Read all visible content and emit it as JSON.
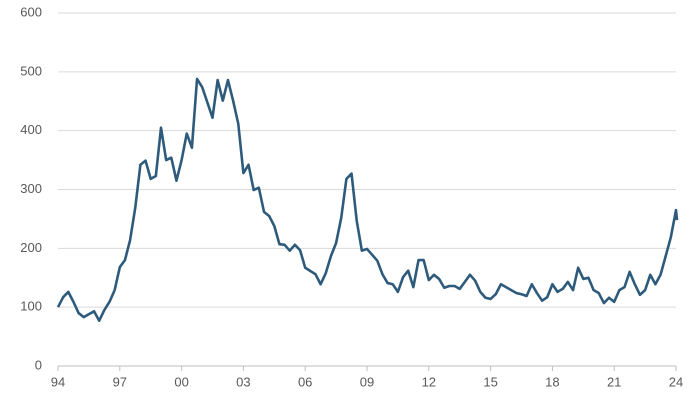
{
  "chart_data": {
    "type": "line",
    "color": "#2e5b7b",
    "grid": true,
    "x": [
      1994,
      1994.25,
      1994.5,
      1994.75,
      1995,
      1995.25,
      1995.75,
      1996,
      1996.25,
      1996.5,
      1996.75,
      1997,
      1997.25,
      1997.5,
      1997.75,
      1998,
      1998.25,
      1998.5,
      1998.75,
      1999,
      1999.25,
      1999.5,
      1999.75,
      2000,
      2000.25,
      2000.5,
      2000.75,
      2001,
      2001.5,
      2001.75,
      2002,
      2002.25,
      2002.5,
      2002.75,
      2003,
      2003.25,
      2003.5,
      2003.75,
      2004,
      2004.25,
      2004.5,
      2004.75,
      2005,
      2005.25,
      2005.5,
      2005.75,
      2006,
      2006.5,
      2006.75,
      2007,
      2007.25,
      2007.5,
      2007.75,
      2008,
      2008.25,
      2008.5,
      2008.75,
      2009,
      2009.5,
      2009.75,
      2010,
      2010.25,
      2010.5,
      2010.75,
      2011,
      2011.25,
      2011.5,
      2011.75,
      2012,
      2012.25,
      2012.5,
      2012.75,
      2013,
      2013.25,
      2013.5,
      2013.75,
      2014,
      2014.25,
      2014.5,
      2014.75,
      2015,
      2015.25,
      2015.5,
      2015.75,
      2016,
      2016.25,
      2016.5,
      2016.75,
      2017,
      2017.25,
      2017.5,
      2017.75,
      2018,
      2018.25,
      2018.5,
      2018.75,
      2019,
      2019.25,
      2019.5,
      2019.75,
      2020,
      2020.25,
      2020.5,
      2020.75,
      2021,
      2021.25,
      2021.5,
      2021.75,
      2022,
      2022.25,
      2022.5,
      2022.75,
      2023,
      2023.25,
      2023.5,
      2023.75,
      2024,
      2024.05
    ],
    "values": [
      100,
      117,
      126,
      109,
      90,
      83,
      93,
      77,
      95,
      109,
      129,
      168,
      180,
      214,
      269,
      342,
      349,
      318,
      323,
      405,
      350,
      354,
      315,
      350,
      395,
      371,
      488,
      474,
      422,
      486,
      451,
      486,
      451,
      412,
      328,
      342,
      299,
      303,
      262,
      255,
      238,
      207,
      206,
      196,
      206,
      197,
      167,
      156,
      139,
      158,
      187,
      209,
      252,
      318,
      327,
      247,
      196,
      199,
      179,
      156,
      141,
      139,
      126,
      151,
      162,
      134,
      180,
      180,
      146,
      155,
      148,
      133,
      136,
      136,
      131,
      143,
      155,
      145,
      126,
      116,
      114,
      122,
      139,
      134,
      129,
      124,
      122,
      119,
      139,
      124,
      111,
      117,
      139,
      126,
      131,
      143,
      129,
      167,
      148,
      150,
      129,
      124,
      107,
      116,
      109,
      129,
      134,
      160,
      139,
      121,
      129,
      155,
      139,
      155,
      187,
      219,
      265,
      248
    ],
    "xlim": [
      1994,
      2024
    ],
    "xticks": [
      {
        "value": 1994,
        "label": "94"
      },
      {
        "value": 1997,
        "label": "97"
      },
      {
        "value": 2000,
        "label": "00"
      },
      {
        "value": 2003,
        "label": "03"
      },
      {
        "value": 2006,
        "label": "06"
      },
      {
        "value": 2009,
        "label": "09"
      },
      {
        "value": 2012,
        "label": "12"
      },
      {
        "value": 2015,
        "label": "15"
      },
      {
        "value": 2018,
        "label": "18"
      },
      {
        "value": 2021,
        "label": "21"
      },
      {
        "value": 2024,
        "label": "24"
      }
    ],
    "ylim": [
      0,
      600
    ],
    "yticks": [
      0,
      100,
      200,
      300,
      400,
      500,
      600
    ]
  }
}
